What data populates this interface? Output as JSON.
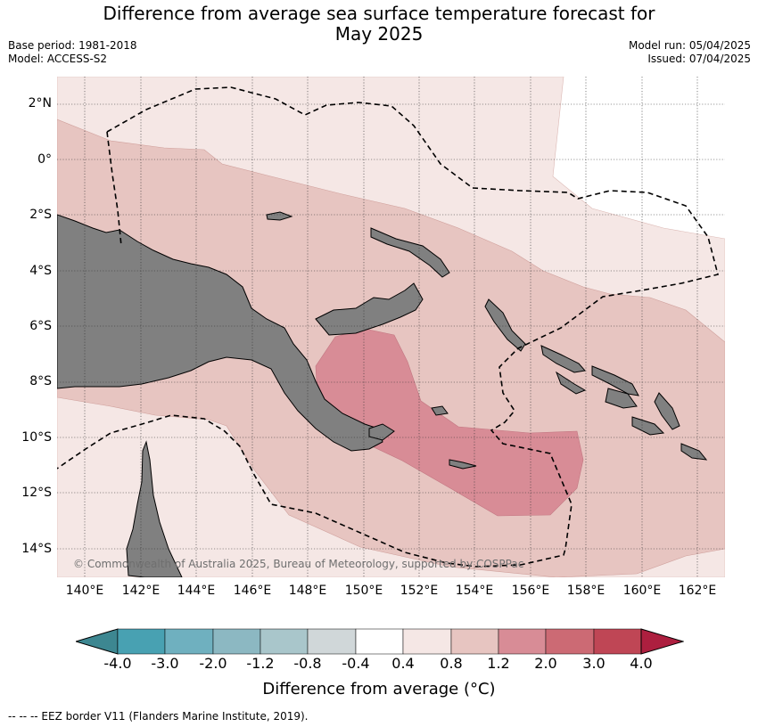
{
  "title_line1": "Difference from average sea surface temperature forecast for",
  "title_line2": "May 2025",
  "base_period": "Base period: 1981-2018",
  "model": "Model: ACCESS-S2",
  "model_run": "Model run: 05/04/2025",
  "issued": "Issued: 07/04/2025",
  "lat_labels": [
    "2°N",
    "0°",
    "2°S",
    "4°S",
    "6°S",
    "8°S",
    "10°S",
    "12°S",
    "14°S"
  ],
  "lon_labels": [
    "140°E",
    "142°E",
    "144°E",
    "146°E",
    "148°E",
    "150°E",
    "152°E",
    "154°E",
    "156°E",
    "158°E",
    "160°E",
    "162°E"
  ],
  "copyright": "© Commonwealth of Australia 2025, Bureau of Meteorology, supported by COSPPac",
  "colorbar": {
    "tick_labels": [
      "-4.0",
      "-3.0",
      "-2.0",
      "-1.2",
      "-0.8",
      "-0.4",
      "0.4",
      "0.8",
      "1.2",
      "2.0",
      "3.0",
      "4.0"
    ],
    "colors": [
      "#3d8791",
      "#48a1b2",
      "#6fb0bf",
      "#8cb8c2",
      "#a9c6cb",
      "#d0d7d9",
      "#ffffff",
      "#f5e7e5",
      "#e7c5c1",
      "#d88c96",
      "#cc6a74",
      "#bf4655",
      "#ad1f3f"
    ],
    "title": "Difference from average (°C)"
  },
  "map": {
    "land_color": "#808080",
    "zone_colors": [
      "#f5e7e5",
      "#e7c5c1",
      "#d88c96"
    ]
  },
  "eez_note": "-- -- -- EEZ border V11 (Flanders Marine Institute, 2019)."
}
